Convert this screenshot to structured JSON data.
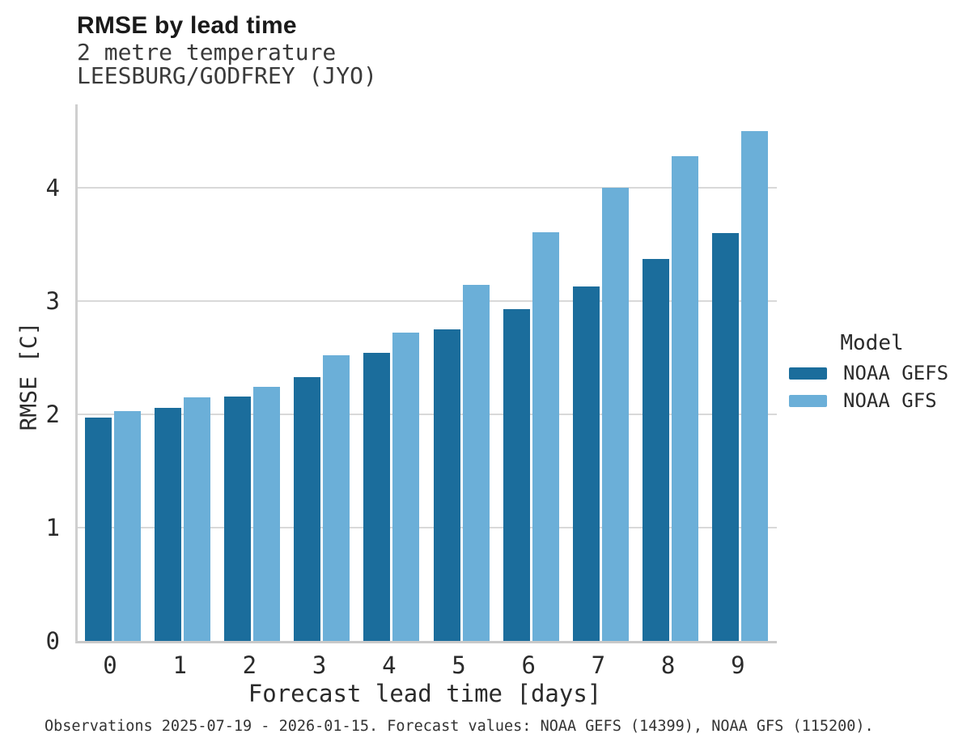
{
  "header": {
    "title": "RMSE by lead time",
    "subtitle_variable": "2 metre temperature",
    "subtitle_station": "LEESBURG/GODFREY (JYO)"
  },
  "footer": {
    "caption": "Observations 2025-07-19 - 2026-01-15. Forecast values: NOAA GEFS (14399), NOAA GFS (115200)."
  },
  "colors": {
    "noaa_gefs": "#1b6d9c",
    "noaa_gfs": "#6bafd8",
    "gridline": "#d9d9d9",
    "axis_spine": "#cccccc"
  },
  "chart_data": {
    "type": "bar",
    "title": "RMSE by lead time",
    "subtitle_variable": "2 metre temperature",
    "subtitle_station": "LEESBURG/GODFREY (JYO)",
    "categories": [
      "0",
      "1",
      "2",
      "3",
      "4",
      "5",
      "6",
      "7",
      "8",
      "9"
    ],
    "series": [
      {
        "name": "NOAA GEFS",
        "color": "#1b6d9c",
        "values": [
          1.97,
          2.06,
          2.16,
          2.33,
          2.54,
          2.75,
          2.93,
          3.13,
          3.37,
          3.6
        ]
      },
      {
        "name": "NOAA GFS",
        "color": "#6bafd8",
        "values": [
          2.03,
          2.15,
          2.24,
          2.52,
          2.72,
          3.14,
          3.61,
          4.0,
          4.28,
          4.5
        ]
      }
    ],
    "xlabel": "Forecast lead time [days]",
    "ylabel": "RMSE [C]",
    "ylim": [
      0,
      4.736
    ],
    "yticks": [
      0,
      1,
      2,
      3,
      4
    ],
    "grid": true,
    "legend_title": "Model",
    "legend_position": "right"
  }
}
